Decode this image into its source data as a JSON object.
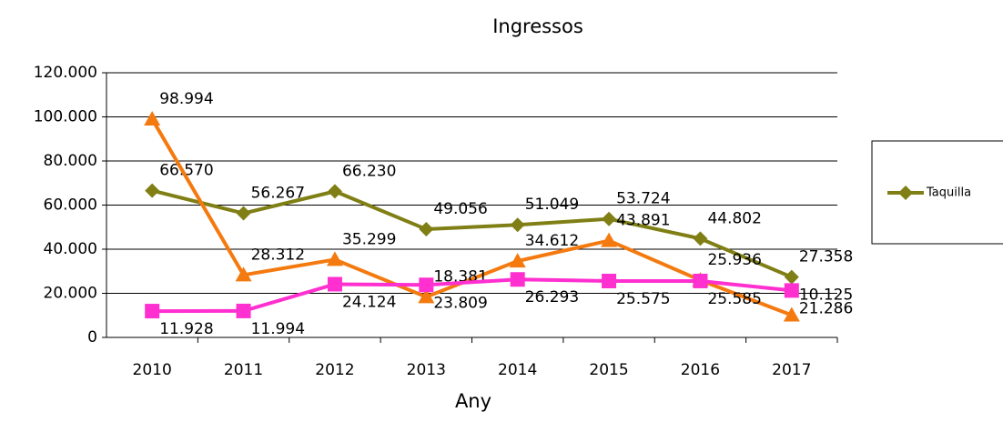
{
  "chart_data": {
    "type": "line",
    "title": "Ingressos",
    "x_label": "Any",
    "categories": [
      "2010",
      "2011",
      "2012",
      "2013",
      "2014",
      "2015",
      "2016",
      "2017"
    ],
    "series": [
      {
        "name": "Taquilla",
        "color": "#7f7f15",
        "marker": "diamond",
        "values": [
          66570,
          56267,
          66230,
          49056,
          51049,
          53724,
          44802,
          27358
        ],
        "value_labels": [
          "66.570",
          "56.267",
          "66.230",
          "49.056",
          "51.049",
          "53.724",
          "44.802",
          "27.358"
        ]
      },
      {
        "color": "#f47a0f",
        "marker": "triangle",
        "values": [
          98994,
          28312,
          35299,
          18381,
          34612,
          43891,
          25936,
          10125
        ],
        "value_labels": [
          "98.994",
          "28.312",
          "35.299",
          "18.381",
          "34.612",
          "43.891",
          "25.936",
          "10.125"
        ]
      },
      {
        "color": "#ff2fd0",
        "marker": "square",
        "values": [
          11928,
          11994,
          24124,
          23809,
          26293,
          25575,
          25585,
          21286
        ],
        "value_labels": [
          "11.928",
          "11.994",
          "24.124",
          "23.809",
          "26.293",
          "25.575",
          "25.585",
          "21.286"
        ]
      }
    ],
    "ylim": [
      0,
      120000
    ],
    "yticks": [
      0,
      {
        "value": 20000,
        "label": "20.000"
      },
      {
        "value": 40000,
        "label": "40.000"
      },
      {
        "value": 60000,
        "label": "60.000"
      },
      {
        "value": 80000,
        "label": "80.000"
      },
      {
        "value": 100000,
        "label": "100.000"
      },
      {
        "value": 120000,
        "label": "120.000"
      }
    ],
    "grid": true,
    "legend": "right"
  }
}
